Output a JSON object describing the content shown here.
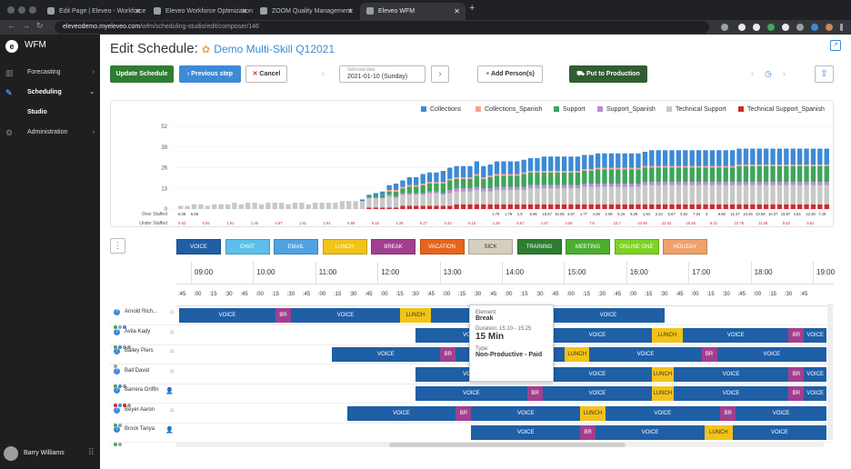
{
  "browser": {
    "tabs": [
      {
        "title": "Edit Page | Eleveo - Workforce",
        "active": false
      },
      {
        "title": "Eleveo Workforce Optimization",
        "active": false
      },
      {
        "title": "ZOOM Quality Management",
        "active": false
      },
      {
        "title": "Eleveo WFM",
        "active": true
      }
    ],
    "url_host": "eleveodemo.myeleveo.com",
    "url_path": "/wfm/scheduling-studio/edit/composer/146"
  },
  "sidebar": {
    "brand": "WFM",
    "items": [
      {
        "label": "Forecasting",
        "icon": "bar-chart-icon"
      },
      {
        "label": "Scheduling",
        "icon": "edit-icon"
      },
      {
        "label": "Studio",
        "icon": ""
      },
      {
        "label": "Administration",
        "icon": "gear-icon"
      }
    ],
    "user": "Barry Williams"
  },
  "header": {
    "title": "Edit Schedule:",
    "schedule_name": "Demo Multi-Skill Q12021"
  },
  "toolbar": {
    "update": "Update Schedule",
    "previous": "Previous step",
    "cancel": "Cancel",
    "date_label": "Selected date",
    "date_value": "2021-01-10 (Sunday)",
    "add_person": "Add Person(s)",
    "put_to_production": "Put to Production"
  },
  "colors": {
    "collections": "#3d8ad6",
    "collections_spanish": "#f4a48c",
    "support": "#3ea55b",
    "support_spanish": "#b490d2",
    "technical_support": "#c8c8c8",
    "technical_support_spanish": "#cf2b2b"
  },
  "chart_data": {
    "type": "bar",
    "stacked": true,
    "ylim": [
      0,
      52
    ],
    "yticks": [
      "52",
      "39",
      "26",
      "13",
      "0"
    ],
    "row_labels": [
      "Over Staffed",
      "Under Staffed"
    ],
    "legend_position": "top-right",
    "series": [
      {
        "name": "Collections",
        "values": [
          0,
          0,
          0,
          0,
          0,
          0,
          0,
          0,
          0,
          0,
          0,
          0,
          0,
          0,
          0,
          0,
          0,
          0,
          0,
          0,
          0,
          0,
          0,
          0,
          0,
          0,
          0,
          1,
          1,
          2,
          2,
          3,
          4,
          4,
          5,
          5,
          6,
          6,
          6,
          7,
          7,
          7,
          7,
          7,
          8,
          7,
          7,
          8,
          8,
          8,
          8,
          8,
          8,
          8,
          9,
          9,
          9,
          9,
          9,
          9,
          9,
          9,
          9,
          9,
          9,
          9,
          9,
          9,
          9,
          9,
          10,
          10,
          10,
          10,
          10,
          10,
          10,
          10,
          10,
          10,
          10,
          10,
          10,
          10,
          10,
          10,
          10,
          10,
          10,
          10,
          10,
          10,
          10,
          10,
          10,
          10,
          10
        ]
      },
      {
        "name": "Collections_Spanish",
        "values": [
          0,
          0,
          0,
          0,
          0,
          0,
          0,
          0,
          0,
          0,
          0,
          0,
          0,
          0,
          0,
          0,
          0,
          0,
          0,
          0,
          0,
          0,
          0,
          0,
          0,
          0,
          0,
          0,
          0,
          0,
          0,
          1,
          1,
          1,
          1,
          1,
          1,
          1,
          1,
          1,
          1,
          1,
          1,
          1,
          1,
          1,
          1,
          1,
          1,
          1,
          1,
          1,
          1,
          1,
          1,
          1,
          1,
          1,
          1,
          1,
          1,
          1,
          1,
          1,
          1,
          1,
          1,
          1,
          1,
          1,
          1,
          1,
          1,
          1,
          1,
          1,
          1,
          1,
          1,
          1,
          1,
          1,
          1,
          1,
          1,
          1,
          1,
          1,
          1,
          1,
          1,
          1,
          1,
          1,
          1,
          1,
          1
        ]
      },
      {
        "name": "Support",
        "values": [
          0,
          0,
          0,
          0,
          0,
          0,
          0,
          0,
          0,
          0,
          0,
          0,
          0,
          0,
          0,
          0,
          0,
          0,
          0,
          0,
          0,
          0,
          0,
          0,
          0,
          0,
          0,
          0,
          1,
          1,
          2,
          2,
          3,
          3,
          4,
          4,
          5,
          5,
          5,
          6,
          6,
          6,
          6,
          6,
          7,
          6,
          7,
          7,
          7,
          7,
          7,
          8,
          8,
          8,
          8,
          8,
          8,
          8,
          8,
          8,
          8,
          8,
          9,
          9,
          9,
          9,
          9,
          9,
          9,
          9,
          9,
          9,
          9,
          9,
          9,
          9,
          9,
          9,
          9,
          9,
          9,
          9,
          9,
          10,
          10,
          10,
          10,
          10,
          10,
          10,
          10,
          10,
          10,
          10,
          10,
          10,
          10
        ]
      },
      {
        "name": "Support_Spanish",
        "values": [
          0,
          0,
          0,
          0,
          0,
          0,
          0,
          0,
          0,
          0,
          0,
          0,
          0,
          0,
          0,
          0,
          0,
          0,
          0,
          0,
          0,
          0,
          0,
          0,
          0,
          0,
          0,
          0,
          0,
          0,
          0,
          1,
          1,
          1,
          1,
          1,
          1,
          1,
          1,
          1,
          2,
          2,
          2,
          2,
          2,
          2,
          2,
          2,
          2,
          2,
          2,
          2,
          2,
          2,
          2,
          2,
          2,
          2,
          2,
          2,
          2,
          2,
          2,
          2,
          2,
          2,
          2,
          2,
          2,
          2,
          2,
          2,
          2,
          2,
          2,
          2,
          2,
          2,
          2,
          2,
          2,
          2,
          2,
          2,
          2,
          2,
          2,
          2,
          2,
          2,
          2,
          2,
          2,
          2,
          2,
          2,
          2
        ]
      },
      {
        "name": "Technical Support",
        "values": [
          2,
          2,
          3,
          3,
          2,
          3,
          3,
          3,
          4,
          3,
          4,
          4,
          3,
          4,
          4,
          4,
          3,
          4,
          4,
          3,
          4,
          4,
          4,
          4,
          5,
          5,
          5,
          5,
          6,
          6,
          6,
          7,
          6,
          7,
          7,
          7,
          7,
          8,
          8,
          7,
          8,
          8,
          8,
          8,
          9,
          8,
          8,
          9,
          9,
          9,
          9,
          9,
          10,
          10,
          10,
          10,
          10,
          10,
          10,
          10,
          11,
          11,
          11,
          11,
          11,
          11,
          11,
          11,
          11,
          12,
          12,
          12,
          12,
          12,
          12,
          12,
          12,
          12,
          12,
          12,
          12,
          12,
          12,
          12,
          12,
          12,
          12,
          12,
          12,
          12,
          12,
          12,
          12,
          12,
          12,
          12,
          12
        ]
      },
      {
        "name": "Technical Support_Spanish",
        "values": [
          0,
          0,
          0,
          0,
          0,
          0,
          0,
          0,
          0,
          0,
          0,
          0,
          0,
          0,
          0,
          0,
          0,
          0,
          0,
          0,
          0,
          0,
          0,
          0,
          0,
          0,
          0,
          0,
          1,
          1,
          1,
          1,
          1,
          2,
          2,
          2,
          2,
          2,
          2,
          2,
          2,
          3,
          3,
          3,
          3,
          3,
          3,
          3,
          3,
          3,
          3,
          3,
          3,
          3,
          3,
          3,
          3,
          3,
          3,
          3,
          3,
          3,
          3,
          3,
          3,
          3,
          3,
          3,
          3,
          3,
          3,
          3,
          3,
          3,
          3,
          3,
          3,
          3,
          3,
          3,
          3,
          3,
          3,
          3,
          3,
          3,
          3,
          3,
          3,
          3,
          3,
          3,
          3,
          3,
          3,
          3,
          3
        ]
      }
    ],
    "over_labels": [
      "6.08",
      "6.08",
      "",
      "",
      "",
      "",
      "",
      "",
      "",
      "",
      "",
      "",
      "",
      "",
      "",
      "",
      "",
      "",
      "",
      "",
      "",
      "",
      "",
      "",
      "",
      "1.79",
      "1.79",
      "1.9",
      "6.95",
      "16.57",
      "10.05",
      "4.67",
      "1.77",
      "4.39",
      "2.08",
      "5.15",
      "9.28",
      "1.84",
      "2.24",
      "5.67",
      "5.52",
      "7.04",
      "3",
      "9.69",
      "11.47",
      "10.46",
      "10.59",
      "10.37",
      "19.67",
      "4.54",
      "12.50",
      "7.49"
    ],
    "under_labels": [
      "0.92",
      "0.92",
      "1.91",
      "1.25",
      "4.67",
      "1.91",
      "2.91",
      "5.89",
      "5.15",
      "4.29",
      "5.27",
      "4.43",
      "6.16",
      "1.29",
      "5.67",
      "1.67",
      "4.58",
      "7.8",
      "23.7",
      "10.49",
      "22.53",
      "15.45",
      "5.21",
      "10.78",
      "11.06",
      "5.52",
      "5.81"
    ]
  },
  "activities": [
    {
      "label": "VOICE",
      "color": "#1f5fa6"
    },
    {
      "label": "CHAT",
      "color": "#5bc0ea"
    },
    {
      "label": "EMAIL",
      "color": "#4fa3e3"
    },
    {
      "label": "LUNCH",
      "color": "#f2c318"
    },
    {
      "label": "BREAK",
      "color": "#a23f8f"
    },
    {
      "label": "VACATION",
      "color": "#e8641c"
    },
    {
      "label": "SICK",
      "color": "#d6cfbf"
    },
    {
      "label": "TRAINING",
      "color": "#2e7d32"
    },
    {
      "label": "MEETING",
      "color": "#4caf30"
    },
    {
      "label": "ONLINE ONE",
      "color": "#7ed321"
    },
    {
      "label": "HOLIDAY",
      "color": "#f0a16a"
    }
  ],
  "timeline": {
    "hours": [
      "09:00",
      "10:00",
      "11:00",
      "12:00",
      "13:00",
      "14:00",
      "15:00",
      "16:00",
      "17:00",
      "18:00",
      "19:00"
    ],
    "quarters": [
      ":45",
      ":00",
      ":15",
      ":30",
      ":45",
      ":00",
      ":15",
      ":30",
      ":45",
      ":00",
      ":15",
      ":30",
      ":45",
      ":00",
      ":15",
      ":30",
      ":45",
      ":00",
      ":15",
      ":30",
      ":45",
      ":00",
      ":15",
      ":30",
      ":45",
      ":00",
      ":15",
      ":30",
      ":45",
      ":00",
      ":15",
      ":30",
      ":45",
      ":00",
      ":15",
      ":30",
      ":45",
      ":00",
      ":15",
      ":30",
      ":45"
    ]
  },
  "agents": [
    {
      "name": "Arnold Rich...",
      "home": true,
      "dots": [
        "#3ea55b",
        "#9e9e9e",
        "#3d8ad6"
      ],
      "segments": [
        {
          "t": "VOICE",
          "s": 0.0,
          "e": 1.55,
          "c": "voice"
        },
        {
          "t": "BR",
          "s": 1.55,
          "e": 1.8,
          "c": "br"
        },
        {
          "t": "VOICE",
          "s": 1.8,
          "e": 3.55,
          "c": "voice"
        },
        {
          "t": "LUNCH",
          "s": 3.55,
          "e": 4.05,
          "c": "lunch"
        },
        {
          "t": "VOICE",
          "s": 4.05,
          "e": 5.75,
          "c": "voice"
        },
        {
          "t": "BR",
          "s": 5.75,
          "e": 6.0,
          "c": "br"
        },
        {
          "t": "VOICE",
          "s": 6.0,
          "e": 7.8,
          "c": "voice"
        }
      ]
    },
    {
      "name": "Avila Kady",
      "home": true,
      "dots": [
        "#3ea55b",
        "#3d8ad6",
        "#9e9e9e",
        "#9e9e9e"
      ],
      "segments": [
        {
          "t": "VOICE",
          "s": 3.8,
          "e": 5.6,
          "c": "voice"
        },
        {
          "t": "BR",
          "s": 5.6,
          "e": 5.85,
          "c": "br"
        },
        {
          "t": "VOICE",
          "s": 5.85,
          "e": 7.6,
          "c": "voice"
        },
        {
          "t": "LUNCH",
          "s": 7.6,
          "e": 8.1,
          "c": "lunch"
        },
        {
          "t": "VOICE",
          "s": 8.1,
          "e": 9.8,
          "c": "voice"
        },
        {
          "t": "BR",
          "s": 9.8,
          "e": 10.05,
          "c": "br"
        },
        {
          "t": "VOICE",
          "s": 10.05,
          "e": 10.55,
          "c": "voice"
        }
      ]
    },
    {
      "name": "Bailey Piers",
      "home": true,
      "dots": [
        "#9e9e9e"
      ],
      "segments": [
        {
          "t": "VOICE",
          "s": 2.45,
          "e": 4.2,
          "c": "voice"
        },
        {
          "t": "BR",
          "s": 4.2,
          "e": 4.45,
          "c": "br"
        },
        {
          "t": "VOICE",
          "s": 4.45,
          "e": 6.2,
          "c": "voice"
        },
        {
          "t": "LUNCH",
          "s": 6.2,
          "e": 6.6,
          "c": "lunch"
        },
        {
          "t": "VOICE",
          "s": 6.6,
          "e": 8.4,
          "c": "voice"
        },
        {
          "t": "BR",
          "s": 8.4,
          "e": 8.65,
          "c": "br"
        },
        {
          "t": "VOICE",
          "s": 8.65,
          "e": 10.5,
          "c": "voice"
        }
      ]
    },
    {
      "name": "Ball David",
      "home": true,
      "dots": [
        "#3ea55b",
        "#3d8ad6",
        "#9e9e9e"
      ],
      "segments": [
        {
          "t": "VOICE",
          "s": 3.8,
          "e": 5.6,
          "c": "voice"
        },
        {
          "t": "BR",
          "s": 5.6,
          "e": 5.85,
          "c": "br"
        },
        {
          "t": "VOICE",
          "s": 5.85,
          "e": 7.6,
          "c": "voice"
        },
        {
          "t": "LUNCH",
          "s": 7.6,
          "e": 7.95,
          "c": "lunch"
        },
        {
          "t": "VOICE",
          "s": 7.95,
          "e": 9.8,
          "c": "voice"
        },
        {
          "t": "BR",
          "s": 9.8,
          "e": 10.05,
          "c": "br"
        },
        {
          "t": "VOICE",
          "s": 10.05,
          "e": 10.55,
          "c": "voice"
        }
      ]
    },
    {
      "name": "Barrera Griffin",
      "home": false,
      "dots": [
        "#cf2b2b",
        "#3d8ad6",
        "#cf2b2b",
        "#9e9e9e"
      ],
      "segments": [
        {
          "t": "VOICE",
          "s": 3.8,
          "e": 5.6,
          "c": "voice"
        },
        {
          "t": "BR",
          "s": 5.6,
          "e": 5.85,
          "c": "br"
        },
        {
          "t": "VOICE",
          "s": 5.85,
          "e": 7.6,
          "c": "voice"
        },
        {
          "t": "LUNCH",
          "s": 7.6,
          "e": 7.95,
          "c": "lunch"
        },
        {
          "t": "VOICE",
          "s": 7.95,
          "e": 9.8,
          "c": "voice"
        },
        {
          "t": "BR",
          "s": 9.8,
          "e": 10.05,
          "c": "br"
        },
        {
          "t": "VOICE",
          "s": 10.05,
          "e": 10.55,
          "c": "voice"
        }
      ]
    },
    {
      "name": "Beyer Aaron",
      "home": true,
      "dots": [
        "#3ea55b",
        "#9e9e9e"
      ],
      "segments": [
        {
          "t": "VOICE",
          "s": 2.7,
          "e": 4.45,
          "c": "voice"
        },
        {
          "t": "BR",
          "s": 4.45,
          "e": 4.7,
          "c": "br"
        },
        {
          "t": "VOICE",
          "s": 4.7,
          "e": 6.45,
          "c": "voice"
        },
        {
          "t": "LUNCH",
          "s": 6.45,
          "e": 6.85,
          "c": "lunch"
        },
        {
          "t": "VOICE",
          "s": 6.85,
          "e": 8.7,
          "c": "voice"
        },
        {
          "t": "BR",
          "s": 8.7,
          "e": 8.95,
          "c": "br"
        },
        {
          "t": "VOICE",
          "s": 8.95,
          "e": 10.55,
          "c": "voice"
        }
      ]
    },
    {
      "name": "Brock Tanya",
      "home": false,
      "dots": [
        "#3ea55b",
        "#9e9e9e"
      ],
      "segments": [
        {
          "t": "VOICE",
          "s": 4.7,
          "e": 6.45,
          "c": "voice"
        },
        {
          "t": "BR",
          "s": 6.45,
          "e": 6.7,
          "c": "br"
        },
        {
          "t": "VOICE",
          "s": 6.7,
          "e": 8.45,
          "c": "voice"
        },
        {
          "t": "LUNCH",
          "s": 8.45,
          "e": 8.9,
          "c": "lunch"
        },
        {
          "t": "VOICE",
          "s": 8.9,
          "e": 10.55,
          "c": "voice"
        }
      ]
    }
  ],
  "tooltip": {
    "element_label": "Element:",
    "element_value": "Break",
    "duration_label": "Duration: 15:10 - 15:25",
    "duration_value": "15 Min",
    "type_label": "Type:",
    "type_value": "Non-Productive - Paid"
  }
}
